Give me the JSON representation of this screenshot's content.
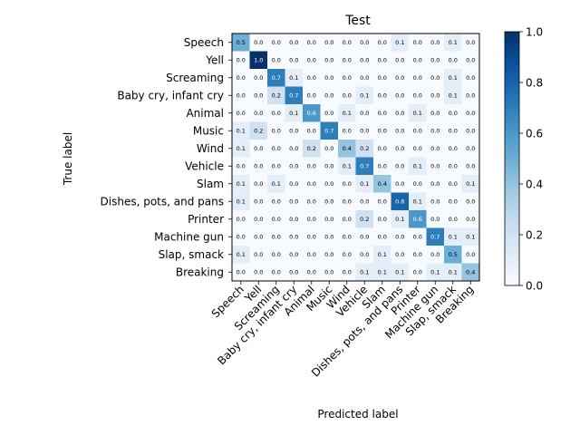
{
  "chart_data": {
    "type": "heatmap",
    "title": "Test",
    "xlabel": "Predicted label",
    "ylabel": "True label",
    "labels": [
      "Speech",
      "Yell",
      "Screaming",
      "Baby cry, infant cry",
      "Animal",
      "Music",
      "Wind",
      "Vehicle",
      "Slam",
      "Dishes, pots, and pans",
      "Printer",
      "Machine gun",
      "Slap, smack",
      "Breaking"
    ],
    "matrix": [
      [
        0.5,
        0.0,
        0.0,
        0.0,
        0.0,
        0.0,
        0.0,
        0.0,
        0.0,
        0.1,
        0.0,
        0.0,
        0.1,
        0.0
      ],
      [
        0.0,
        1.0,
        0.0,
        0.0,
        0.0,
        0.0,
        0.0,
        0.0,
        0.0,
        0.0,
        0.0,
        0.0,
        0.0,
        0.0
      ],
      [
        0.0,
        0.0,
        0.7,
        0.1,
        0.0,
        0.0,
        0.0,
        0.0,
        0.0,
        0.0,
        0.0,
        0.0,
        0.1,
        0.0
      ],
      [
        0.0,
        0.0,
        0.2,
        0.7,
        0.0,
        0.0,
        0.0,
        0.1,
        0.0,
        0.0,
        0.0,
        0.0,
        0.1,
        0.0
      ],
      [
        0.0,
        0.0,
        0.0,
        0.1,
        0.6,
        0.0,
        0.1,
        0.0,
        0.0,
        0.0,
        0.1,
        0.0,
        0.0,
        0.0
      ],
      [
        0.1,
        0.2,
        0.0,
        0.0,
        0.0,
        0.7,
        0.0,
        0.0,
        0.0,
        0.0,
        0.0,
        0.0,
        0.0,
        0.0
      ],
      [
        0.1,
        0.0,
        0.0,
        0.0,
        0.2,
        0.0,
        0.4,
        0.2,
        0.0,
        0.0,
        0.0,
        0.0,
        0.0,
        0.0
      ],
      [
        0.0,
        0.0,
        0.0,
        0.0,
        0.0,
        0.0,
        0.1,
        0.7,
        0.0,
        0.0,
        0.1,
        0.0,
        0.0,
        0.0
      ],
      [
        0.1,
        0.0,
        0.1,
        0.0,
        0.0,
        0.0,
        0.0,
        0.1,
        0.4,
        0.0,
        0.0,
        0.0,
        0.0,
        0.1
      ],
      [
        0.1,
        0.0,
        0.0,
        0.0,
        0.0,
        0.0,
        0.0,
        0.0,
        0.0,
        0.8,
        0.1,
        0.0,
        0.0,
        0.0
      ],
      [
        0.0,
        0.0,
        0.0,
        0.0,
        0.0,
        0.0,
        0.0,
        0.2,
        0.0,
        0.1,
        0.6,
        0.0,
        0.0,
        0.0
      ],
      [
        0.0,
        0.0,
        0.0,
        0.0,
        0.0,
        0.0,
        0.0,
        0.0,
        0.0,
        0.0,
        0.0,
        0.7,
        0.1,
        0.1
      ],
      [
        0.1,
        0.0,
        0.0,
        0.0,
        0.0,
        0.0,
        0.0,
        0.0,
        0.1,
        0.0,
        0.0,
        0.0,
        0.5,
        0.0
      ],
      [
        0.0,
        0.0,
        0.0,
        0.0,
        0.0,
        0.0,
        0.0,
        0.1,
        0.1,
        0.1,
        0.0,
        0.1,
        0.1,
        0.4
      ]
    ],
    "colormap": "Blues",
    "vmin": 0.0,
    "vmax": 1.0,
    "colorbar_ticks": [
      "0.0",
      "0.2",
      "0.4",
      "0.6",
      "0.8",
      "1.0"
    ],
    "grid": false
  }
}
